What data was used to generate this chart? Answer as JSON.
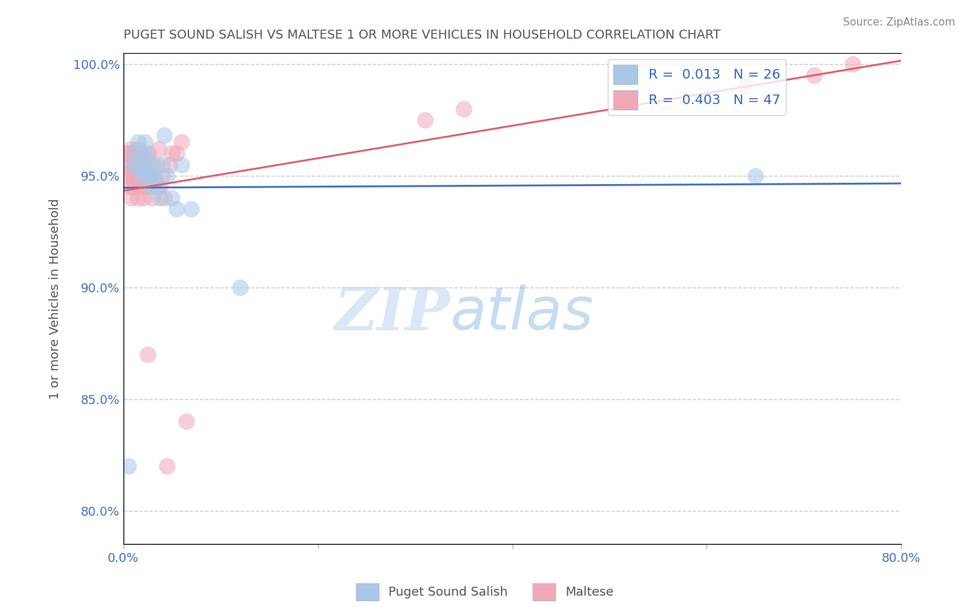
{
  "title": "PUGET SOUND SALISH VS MALTESE 1 OR MORE VEHICLES IN HOUSEHOLD CORRELATION CHART",
  "source_text": "Source: ZipAtlas.com",
  "ylabel": "1 or more Vehicles in Household",
  "xlim": [
    0.0,
    0.8
  ],
  "ylim": [
    0.785,
    1.005
  ],
  "xticks": [
    0.0,
    0.2,
    0.4,
    0.6,
    0.8
  ],
  "xticklabels": [
    "0.0%",
    "",
    "",
    "",
    "80.0%"
  ],
  "yticks": [
    0.8,
    0.85,
    0.9,
    0.95,
    1.0
  ],
  "yticklabels": [
    "80.0%",
    "85.0%",
    "90.0%",
    "95.0%",
    "100.0%"
  ],
  "legend_R1": "R =  0.013",
  "legend_N1": "N = 26",
  "legend_R2": "R =  0.403",
  "legend_N2": "N = 47",
  "color_blue": "#a8c8e8",
  "color_pink": "#f0a8b8",
  "line_blue": "#4472c4",
  "line_pink": "#e06070",
  "watermark_zip": "ZIP",
  "watermark_atlas": "atlas",
  "blue_scatter_x": [
    0.005,
    0.01,
    0.012,
    0.015,
    0.015,
    0.018,
    0.02,
    0.022,
    0.022,
    0.025,
    0.025,
    0.028,
    0.03,
    0.03,
    0.033,
    0.035,
    0.038,
    0.04,
    0.042,
    0.045,
    0.05,
    0.055,
    0.06,
    0.07,
    0.12,
    0.65
  ],
  "blue_scatter_y": [
    0.82,
    0.955,
    0.96,
    0.965,
    0.955,
    0.952,
    0.95,
    0.96,
    0.965,
    0.952,
    0.958,
    0.945,
    0.95,
    0.955,
    0.948,
    0.945,
    0.94,
    0.955,
    0.968,
    0.95,
    0.94,
    0.935,
    0.955,
    0.935,
    0.9,
    0.95
  ],
  "pink_scatter_x": [
    0.002,
    0.003,
    0.004,
    0.005,
    0.006,
    0.007,
    0.007,
    0.008,
    0.008,
    0.009,
    0.01,
    0.01,
    0.011,
    0.012,
    0.013,
    0.014,
    0.015,
    0.015,
    0.016,
    0.017,
    0.018,
    0.019,
    0.02,
    0.021,
    0.022,
    0.023,
    0.025,
    0.026,
    0.028,
    0.03,
    0.032,
    0.034,
    0.036,
    0.038,
    0.04,
    0.042,
    0.045,
    0.048,
    0.05,
    0.055,
    0.06,
    0.065,
    0.31,
    0.35,
    0.64,
    0.71,
    0.75
  ],
  "pink_scatter_y": [
    0.955,
    0.96,
    0.95,
    0.96,
    0.955,
    0.945,
    0.962,
    0.94,
    0.952,
    0.95,
    0.948,
    0.958,
    0.945,
    0.955,
    0.95,
    0.962,
    0.94,
    0.955,
    0.948,
    0.96,
    0.945,
    0.955,
    0.95,
    0.94,
    0.958,
    0.945,
    0.87,
    0.96,
    0.95,
    0.94,
    0.948,
    0.955,
    0.962,
    0.945,
    0.95,
    0.94,
    0.82,
    0.955,
    0.96,
    0.96,
    0.965,
    0.84,
    0.975,
    0.98,
    0.99,
    0.995,
    1.0
  ],
  "background_color": "#ffffff",
  "grid_color": "#cccccc",
  "title_color": "#555555",
  "source_color": "#888888",
  "tick_color": "#4472c4",
  "axis_color": "#aaaaaa"
}
